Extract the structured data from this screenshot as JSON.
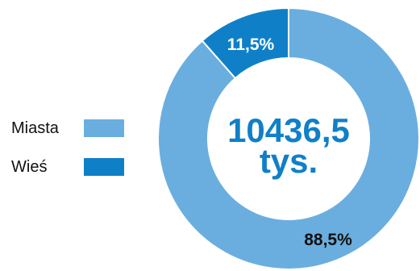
{
  "chart_data": {
    "type": "pie",
    "categories": [
      "Miasta",
      "Wieś"
    ],
    "values": [
      88.5,
      11.5
    ],
    "value_labels": [
      "88,5%",
      "11,5%"
    ],
    "colors": [
      "#6aaee0",
      "#0f80c8"
    ],
    "center_label": [
      "10436,5",
      "tys."
    ],
    "center_color": "#0f80c8",
    "legend_position": "left"
  }
}
